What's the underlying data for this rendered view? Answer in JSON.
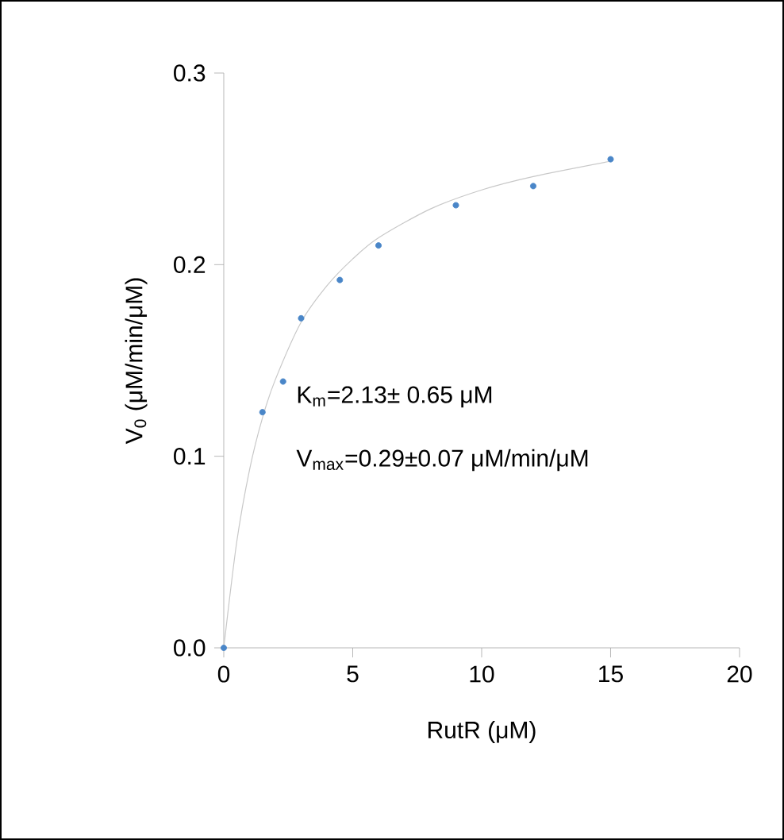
{
  "chart_data": {
    "type": "scatter",
    "xlabel": "RutR (μM)",
    "ylabel": "V$_{0}$ (μM/min/μM)",
    "xlim": [
      0,
      20
    ],
    "ylim": [
      0,
      0.3
    ],
    "xticks": [
      0,
      5,
      10,
      15,
      20
    ],
    "yticks": [
      {
        "value": 0,
        "label": "0.0"
      },
      {
        "value": 0.1,
        "label": "0.1"
      },
      {
        "value": 0.2,
        "label": "0.2"
      },
      {
        "value": 0.3,
        "label": "0.3"
      }
    ],
    "grid": false,
    "annotations": [
      "K$_{m}$=2.13± 0.65 μM",
      "V$_{max}$=0.29±0.07 μM/min/μM"
    ],
    "series": [
      {
        "type": "line",
        "color": "#c8c8c8",
        "marker": "none",
        "line_style": "solid",
        "x": [
          0,
          0.5,
          1,
          1.5,
          2,
          3,
          4,
          5,
          6,
          8,
          10,
          12,
          15
        ],
        "values": [
          0,
          0.055,
          0.093,
          0.12,
          0.14,
          0.17,
          0.189,
          0.203,
          0.214,
          0.229,
          0.239,
          0.246,
          0.254
        ]
      },
      {
        "color": "#4a86c8",
        "marker": "circle",
        "x": [
          0,
          1.5,
          2.3,
          3,
          4.5,
          6,
          9,
          12,
          15
        ],
        "values": [
          0,
          0.123,
          0.139,
          0.172,
          0.192,
          0.21,
          0.231,
          0.241,
          0.255
        ]
      }
    ]
  }
}
